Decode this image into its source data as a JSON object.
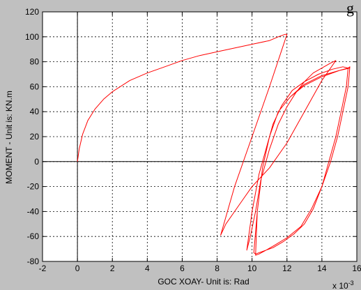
{
  "title_fragment": "g",
  "colors": {
    "figure_bg": "#c0c0c0",
    "axes_bg": "#ffffff",
    "line": "#ff0000",
    "grid": "#000000"
  },
  "chart_data": {
    "type": "line",
    "title": "",
    "xlabel": "GOC XOAY- Unit is: Rad",
    "ylabel": "MOMENT - Unit is: KN.m",
    "x_exponent_label": "x 10",
    "x_exponent_power": "-3",
    "xlim": [
      -2,
      16
    ],
    "ylim": [
      -80,
      120
    ],
    "xticks": [
      -2,
      0,
      2,
      4,
      6,
      8,
      10,
      12,
      14,
      16
    ],
    "yticks": [
      -80,
      -60,
      -40,
      -20,
      0,
      20,
      40,
      60,
      80,
      100,
      120
    ],
    "xtick_labels": [
      "-2",
      "0",
      "2",
      "4",
      "6",
      "8",
      "10",
      "12",
      "14",
      "16"
    ],
    "ytick_labels": [
      "-80",
      "-60",
      "-40",
      "-20",
      "0",
      "20",
      "40",
      "60",
      "80",
      "100",
      "120"
    ],
    "grid": true,
    "grid_style": "dotted",
    "zero_lines": true,
    "series": [
      {
        "x": [
          0,
          0.1,
          0.3,
          0.6,
          1.0,
          1.5,
          2.0,
          3.0,
          4.0,
          5.0,
          6.0,
          7.0,
          8.0,
          9.0,
          10.0,
          11.0,
          11.5,
          11.9,
          12.0,
          11.0,
          10.0,
          9.0,
          8.2,
          8.5,
          9.0,
          9.5,
          10.0,
          11.0,
          12.0,
          13.0,
          14.0,
          14.8,
          14.5,
          14.0,
          13.5,
          13.0,
          12.5,
          12.0,
          11.5,
          11.0,
          10.5,
          10.2,
          9.9,
          9.7,
          10.0,
          10.4,
          10.8,
          11.2,
          11.7,
          12.3,
          13.0,
          13.8,
          14.6,
          15.2,
          15.5,
          15.4,
          15.1,
          14.8,
          14.4,
          14.0,
          13.5,
          13.0,
          12.4,
          11.8,
          11.2,
          10.6,
          10.2,
          10.1,
          10.3,
          10.6,
          11.0,
          11.5,
          12.2,
          13.0,
          14.0,
          15.0,
          15.5,
          15.6,
          15.5,
          15.2,
          14.9,
          14.5,
          14.0,
          13.4,
          12.8,
          12.0,
          11.3,
          10.8,
          10.4,
          10.2,
          10.3,
          10.6,
          11.0,
          11.5,
          12.2,
          13.0,
          14.0,
          15.0,
          15.6
        ],
        "y": [
          0,
          10,
          22,
          33,
          42,
          50,
          56,
          65,
          71,
          76,
          81,
          85,
          88,
          91,
          94,
          97,
          100,
          102,
          102,
          60,
          20,
          -20,
          -59,
          -50,
          -40,
          -30,
          -20,
          -5,
          15,
          40,
          65,
          81,
          79,
          75,
          71,
          64,
          55,
          44,
          30,
          10,
          -15,
          -40,
          -60,
          -71,
          -40,
          -10,
          10,
          30,
          45,
          57,
          64,
          70,
          74,
          76,
          75,
          60,
          40,
          20,
          0,
          -20,
          -38,
          -50,
          -58,
          -64,
          -69,
          -72,
          -74,
          -73,
          -40,
          -5,
          20,
          40,
          52,
          61,
          68,
          73,
          75,
          76,
          60,
          40,
          20,
          0,
          -20,
          -38,
          -52,
          -61,
          -67,
          -71,
          -74,
          -75,
          -40,
          -5,
          20,
          40,
          52,
          62,
          69,
          73,
          75
        ]
      }
    ]
  }
}
